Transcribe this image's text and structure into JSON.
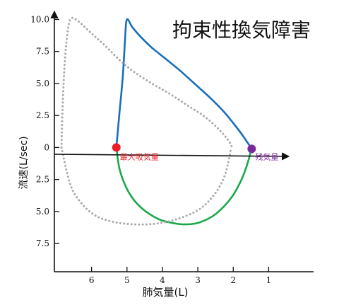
{
  "chart_data": {
    "type": "line",
    "title": "拘束性換気障害",
    "xlabel": "肺気量(L)",
    "ylabel": "流速(L/sec)",
    "x_reversed": true,
    "xlim": [
      7.05,
      0.45
    ],
    "ylim": [
      -9.7,
      10.3
    ],
    "x_ticks": [
      6,
      5,
      4,
      3,
      2,
      1
    ],
    "x_tick_labels": [
      "6",
      "5",
      "4",
      "3",
      "2",
      "1"
    ],
    "y_ticks": [
      10,
      7.5,
      5,
      2.5,
      0,
      -2.5,
      -5,
      -7.5
    ],
    "y_tick_labels": [
      "10.0",
      "7.5",
      "5.0",
      "2.5",
      "0",
      "2.5",
      "5.0",
      "7.5"
    ],
    "annotations": [
      {
        "text": "最大吸気量",
        "x": 5.3,
        "y": 0,
        "color": "#ee1c25"
      },
      {
        "text": "残気量",
        "x": 1.48,
        "y": 0,
        "color": "#7a2a9a"
      }
    ],
    "series": [
      {
        "style": "solid",
        "color": "#1a6fba",
        "x": [
          5.3,
          5.22,
          5.12,
          5.06,
          5.03,
          5.0,
          4.95,
          4.85,
          4.6,
          4.3,
          3.9,
          3.5,
          3.1,
          2.7,
          2.3,
          2.0,
          1.75,
          1.6,
          1.52,
          1.48
        ],
        "y": [
          0,
          2.5,
          5.5,
          8.2,
          9.6,
          10.0,
          9.9,
          9.4,
          8.6,
          7.8,
          6.9,
          6.0,
          5.0,
          4.0,
          2.9,
          1.9,
          1.0,
          0.4,
          0.1,
          0
        ]
      },
      {
        "style": "solid",
        "color": "#1aa84a",
        "x": [
          5.3,
          5.2,
          4.95,
          4.6,
          4.1,
          3.6,
          3.3,
          2.95,
          2.5,
          2.05,
          1.75,
          1.57,
          1.48
        ],
        "y": [
          0,
          -1.8,
          -3.5,
          -4.7,
          -5.6,
          -5.95,
          -6.0,
          -5.85,
          -5.2,
          -3.9,
          -2.4,
          -1.0,
          0
        ]
      },
      {
        "style": "dotted",
        "color": "#aaaaaa",
        "x": [
          6.85,
          6.82,
          6.77,
          6.7,
          6.6,
          6.4,
          6.0,
          5.6,
          5.2,
          4.8,
          4.3,
          3.8,
          3.3,
          2.8,
          2.4,
          2.15,
          2.05,
          2.06
        ],
        "y": [
          0,
          3.0,
          6.0,
          8.5,
          10.0,
          9.9,
          8.9,
          7.9,
          6.8,
          5.9,
          5.0,
          4.2,
          3.3,
          2.4,
          1.4,
          0.6,
          0.1,
          0
        ]
      },
      {
        "style": "dotted",
        "color": "#aaaaaa",
        "x": [
          6.85,
          6.6,
          6.3,
          5.9,
          5.4,
          4.8,
          4.2,
          3.6,
          3.0,
          2.6,
          2.3,
          2.15,
          2.06
        ],
        "y": [
          0,
          -2.9,
          -4.3,
          -5.3,
          -5.8,
          -6.0,
          -5.95,
          -5.6,
          -4.9,
          -3.9,
          -2.6,
          -1.3,
          0
        ]
      }
    ],
    "points": [
      {
        "x": 5.3,
        "y": 0,
        "color": "#ee1c25"
      },
      {
        "x": 1.48,
        "y": 0,
        "color": "#7a2a9a"
      }
    ]
  }
}
